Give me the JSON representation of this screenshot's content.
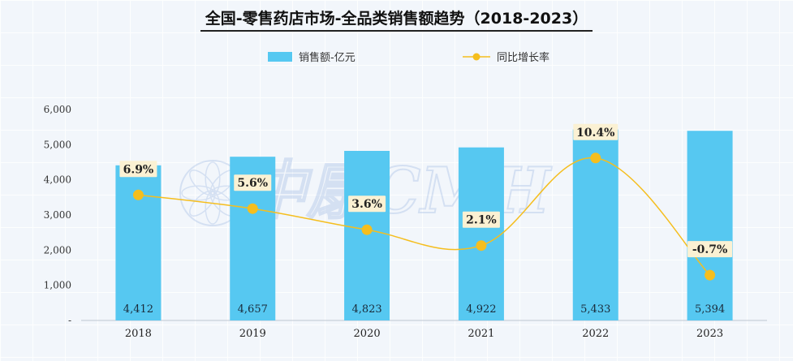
{
  "chart_data": {
    "type": "bar+line",
    "title": "全国-零售药店市场-全品类销售额趋势（2018-2023）",
    "categories": [
      "2018",
      "2019",
      "2020",
      "2021",
      "2022",
      "2023"
    ],
    "series": [
      {
        "name": "销售额-亿元",
        "type": "bar",
        "axis": "left",
        "values": [
          4412,
          4657,
          4823,
          4922,
          5433,
          5394
        ],
        "labels": [
          "4,412",
          "4,657",
          "4,823",
          "4,922",
          "5,433",
          "5,394"
        ],
        "color": "#56c8f1"
      },
      {
        "name": "同比增长率",
        "type": "line",
        "axis": "right",
        "values": [
          6.9,
          5.6,
          3.6,
          2.1,
          10.4,
          -0.7
        ],
        "labels": [
          "6.9%",
          "5.6%",
          "3.6%",
          "2.1%",
          "10.4%",
          "-0.7%"
        ],
        "color": "#f5be1e"
      }
    ],
    "y_left": {
      "min": 0,
      "max": 6000,
      "ticks": [
        "-",
        "1,000",
        "2,000",
        "3,000",
        "4,000",
        "5,000",
        "6,000"
      ]
    },
    "y_right_range": [
      -5,
      15
    ],
    "legend_position": "top",
    "watermark": "中康CMH"
  }
}
